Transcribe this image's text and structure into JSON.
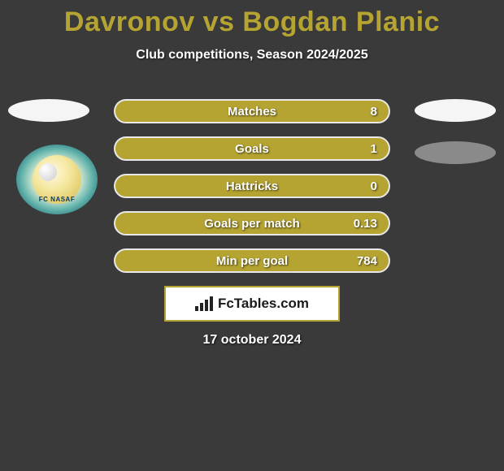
{
  "title": {
    "text": "Davronov vs Bogdan Planic",
    "color": "#b5a432",
    "fontsize": 34
  },
  "subtitle": "Club competitions, Season 2024/2025",
  "club_badge_text": "FC NASAF",
  "colors": {
    "background": "#3a3a3a",
    "bar_fill": "#b5a432",
    "bar_border": "#e8e8e8",
    "text_white": "#ffffff",
    "brand_border": "#b5a432"
  },
  "stats": [
    {
      "label": "Matches",
      "value": "8"
    },
    {
      "label": "Goals",
      "value": "1"
    },
    {
      "label": "Hattricks",
      "value": "0"
    },
    {
      "label": "Goals per match",
      "value": "0.13"
    },
    {
      "label": "Min per goal",
      "value": "784"
    }
  ],
  "brand": "FcTables.com",
  "date": "17 october 2024"
}
